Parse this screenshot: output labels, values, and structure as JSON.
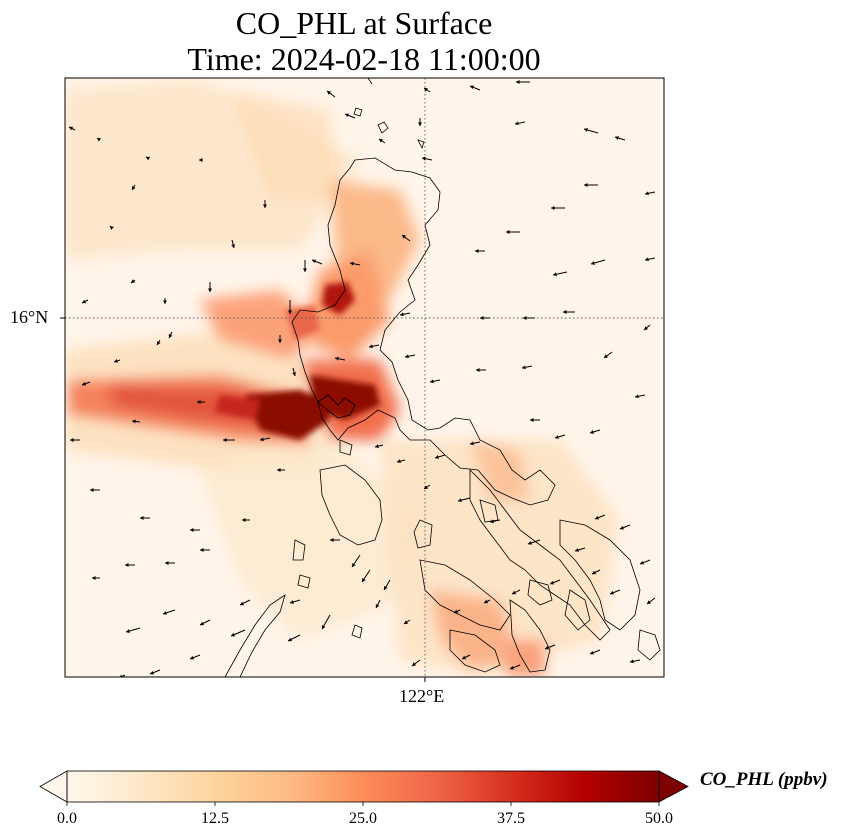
{
  "title_line1": "CO_PHL at Surface",
  "title_line2": "Time: 2024-02-18 11:00:00",
  "axes": {
    "lat_label": "16°N",
    "lon_label": "122°E"
  },
  "colorbar": {
    "label": "CO_PHL (ppbv)",
    "ticks": [
      "0.0",
      "12.5",
      "25.0",
      "37.5",
      "50.0"
    ],
    "min": 0,
    "max": 50,
    "colormap": "OrRd",
    "colors": [
      "#fff7ec",
      "#fee8c8",
      "#fdd49e",
      "#fdbb84",
      "#fc8d59",
      "#ef6548",
      "#d7301f",
      "#b30000",
      "#7f0000"
    ]
  },
  "map": {
    "gridlines": "dotted",
    "features": [
      "coastlines",
      "wind-vectors",
      "concentration-field"
    ]
  }
}
